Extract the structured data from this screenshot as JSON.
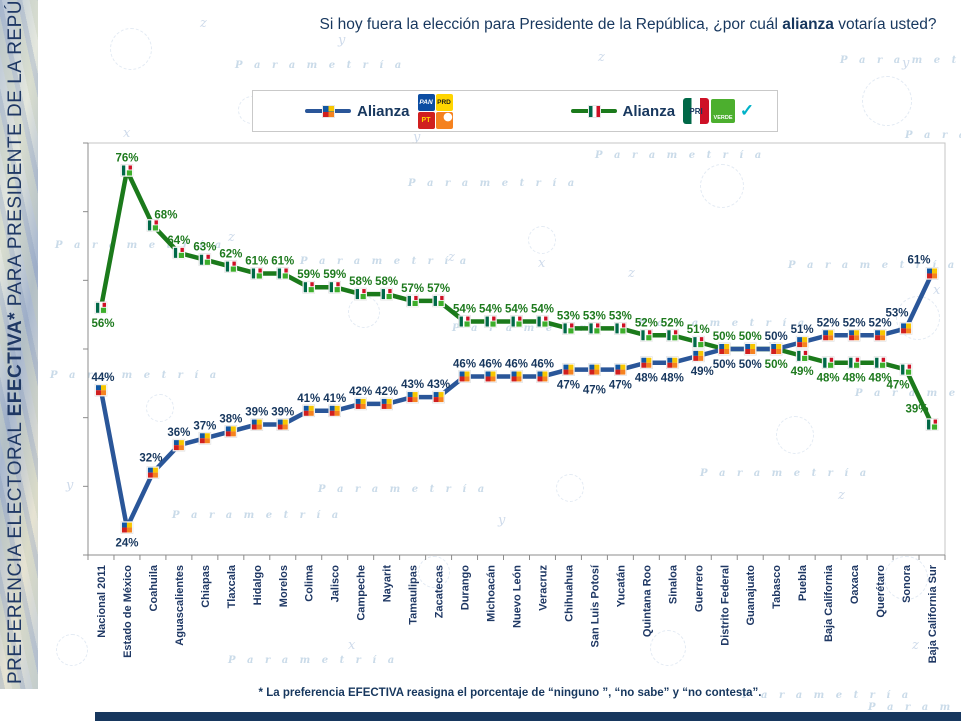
{
  "sidebar": {
    "title_part1": "PREFERENCIA ELECTORAL ",
    "title_bold": "EFECTIVA*",
    "title_part2": " PARA PRESIDENTE DE LA REPÚBLICA"
  },
  "header": {
    "title_prefix": "Si hoy fuera la elección para Presidente de la República, ¿por cuál ",
    "title_bold": "alianza",
    "title_suffix": " votaría usted?"
  },
  "legend": {
    "items": [
      {
        "label": "Alianza",
        "marker": "pan-prd-pt-mc",
        "color": "#2A5699",
        "parties": [
          {
            "id": "pan",
            "text": "PAN"
          },
          {
            "id": "prd",
            "text": "PRD"
          },
          {
            "id": "pt",
            "text": "PT"
          },
          {
            "id": "mc",
            "text": ""
          }
        ]
      },
      {
        "label": "Alianza",
        "marker": "pri-verde-na",
        "color": "#1B7A1B",
        "parties": [
          {
            "id": "pri",
            "text": "PRI"
          },
          {
            "id": "verde",
            "text": "VERDE"
          },
          {
            "id": "na",
            "text": "✓"
          }
        ]
      }
    ]
  },
  "watermark": "Parametría",
  "footnote": "* La preferencia EFECTIVA reasigna el porcentaje de “ninguno ”, “no sabe” y “no contesta”.",
  "chart_data": {
    "type": "line",
    "title": "Si hoy fuera la elección para Presidente de la República, ¿por cuál alianza votaría usted?",
    "categories": [
      "Nacional 2011",
      "Estado de México",
      "Coahuila",
      "Aguascalientes",
      "Chiapas",
      "Tlaxcala",
      "Hidalgo",
      "Morelos",
      "Colima",
      "Jalisco",
      "Campeche",
      "Nayarit",
      "Tamaulipas",
      "Zacatecas",
      "Durango",
      "Michoacán",
      "Nuevo León",
      "Veracruz",
      "Chihuahua",
      "San Luis Potosí",
      "Yucatán",
      "Quintana Roo",
      "Sinaloa",
      "Guerrero",
      "Distrito Federal",
      "Guanajuato",
      "Tabasco",
      "Puebla",
      "Baja California",
      "Oaxaca",
      "Querétaro",
      "Sonora",
      "Baja California Sur"
    ],
    "series": [
      {
        "name": "Alianza PAN-PRD-PT-MC",
        "color": "#2A5699",
        "marker": "pan-prd-pt-mc",
        "values": [
          44,
          24,
          32,
          36,
          37,
          38,
          39,
          39,
          41,
          41,
          42,
          42,
          43,
          43,
          46,
          46,
          46,
          46,
          47,
          47,
          47,
          48,
          48,
          49,
          50,
          50,
          50,
          51,
          52,
          52,
          52,
          53,
          61
        ]
      },
      {
        "name": "Alianza PRI-PVEM-Nueva Alianza",
        "color": "#1B7A1B",
        "marker": "pri-verde-na",
        "values": [
          56,
          76,
          68,
          64,
          63,
          62,
          61,
          61,
          59,
          59,
          58,
          58,
          57,
          57,
          54,
          54,
          54,
          54,
          53,
          53,
          53,
          52,
          52,
          51,
          50,
          50,
          50,
          49,
          48,
          48,
          48,
          47,
          39
        ]
      }
    ],
    "value_suffix": "%",
    "ylim": [
      20,
      80
    ],
    "xlabel": "",
    "ylabel": "",
    "grid": false,
    "legend_position": "top"
  }
}
